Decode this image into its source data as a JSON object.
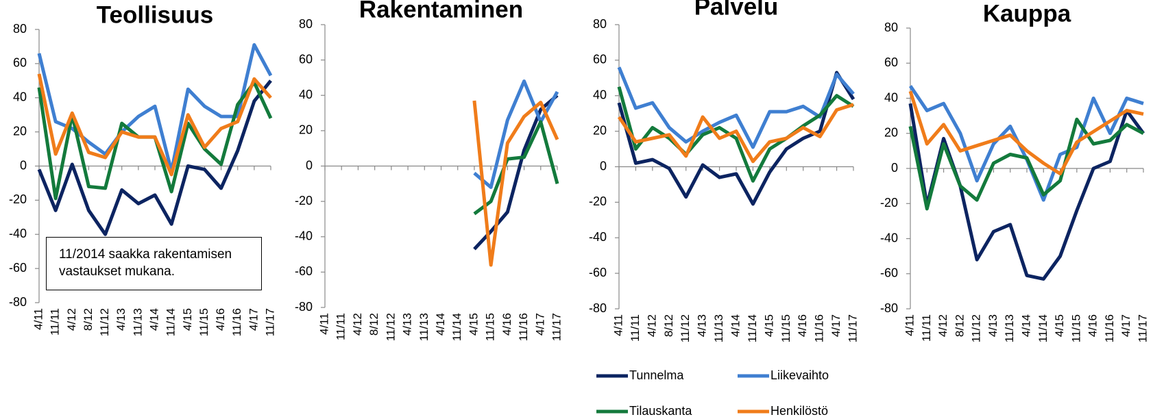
{
  "chart_data": [
    {
      "type": "line",
      "title": "Teollisuus",
      "categories": [
        "4/11",
        "11/11",
        "4/12",
        "8/12",
        "11/12",
        "4/13",
        "11/13",
        "4/14",
        "11/14",
        "4/15",
        "11/15",
        "4/16",
        "11/16",
        "4/17",
        "11/17"
      ],
      "ylim": [
        -80,
        80
      ],
      "yticks": [
        -80,
        -60,
        -40,
        -20,
        0,
        20,
        40,
        60,
        80
      ],
      "annotation": "11/2014 saakka rakentamisen vastaukset mukana.",
      "series": [
        {
          "color": "#0c2461",
          "values": [
            -2,
            -26,
            1,
            -26,
            -40,
            -14,
            -22,
            -17,
            -34,
            0,
            -2,
            -13,
            9,
            38,
            50
          ]
        },
        {
          "color": "#3f7fd1",
          "values": [
            66,
            26,
            22,
            14,
            7,
            20,
            29,
            35,
            -3,
            45,
            35,
            29,
            29,
            71,
            53
          ]
        },
        {
          "color": "#137a3c",
          "values": [
            46,
            -19,
            30,
            -12,
            -13,
            25,
            17,
            17,
            -15,
            25,
            10,
            1,
            36,
            49,
            28
          ]
        },
        {
          "color": "#f07c1a",
          "values": [
            54,
            7,
            31,
            8,
            5,
            20,
            17,
            17,
            -5,
            30,
            11,
            22,
            26,
            51,
            40
          ]
        }
      ]
    },
    {
      "type": "line",
      "title": "Rakentaminen",
      "categories": [
        "4/11",
        "11/11",
        "4/12",
        "8/12",
        "11/12",
        "4/13",
        "11/13",
        "4/14",
        "11/14",
        "4/15",
        "11/15",
        "4/16",
        "11/16",
        "4/17",
        "11/17"
      ],
      "ylim": [
        -80,
        80
      ],
      "yticks": [
        -80,
        -60,
        -40,
        -20,
        0,
        20,
        40,
        60,
        80
      ],
      "series": [
        {
          "color": "#0c2461",
          "values": [
            null,
            null,
            null,
            null,
            null,
            null,
            null,
            null,
            null,
            -47,
            -37,
            -26,
            9,
            32,
            40
          ]
        },
        {
          "color": "#3f7fd1",
          "values": [
            null,
            null,
            null,
            null,
            null,
            null,
            null,
            null,
            null,
            -4,
            -12,
            26,
            48,
            25,
            42
          ]
        },
        {
          "color": "#137a3c",
          "values": [
            null,
            null,
            null,
            null,
            null,
            null,
            null,
            null,
            null,
            -27,
            -20,
            4,
            5,
            25,
            -10
          ]
        },
        {
          "color": "#f07c1a",
          "values": [
            null,
            null,
            null,
            null,
            null,
            null,
            null,
            null,
            null,
            37,
            -56,
            13,
            28,
            36,
            15
          ]
        }
      ]
    },
    {
      "type": "line",
      "title": "Palvelu",
      "categories": [
        "4/11",
        "11/11",
        "4/12",
        "8/12",
        "11/12",
        "4/13",
        "11/13",
        "4/14",
        "11/14",
        "4/15",
        "11/15",
        "4/16",
        "11/16",
        "4/17",
        "11/17"
      ],
      "ylim": [
        -80,
        80
      ],
      "yticks": [
        -80,
        -60,
        -40,
        -20,
        0,
        20,
        40,
        60,
        80
      ],
      "legend": "bottom",
      "series": [
        {
          "name": "Tunnelma",
          "color": "#0c2461",
          "values": [
            36,
            2,
            4,
            -1,
            -17,
            1,
            -6,
            -4,
            -21,
            -3,
            10,
            16,
            20,
            53,
            38
          ]
        },
        {
          "name": "Liikevaihto",
          "color": "#3f7fd1",
          "values": [
            56,
            33,
            36,
            22,
            14,
            20,
            25,
            29,
            11,
            31,
            31,
            34,
            28,
            52,
            41
          ]
        },
        {
          "name": "Tilauskanta",
          "color": "#137a3c",
          "values": [
            45,
            10,
            22,
            16,
            7,
            18,
            22,
            16,
            -8,
            10,
            16,
            23,
            29,
            40,
            34
          ]
        },
        {
          "name": "Henkilöstö",
          "color": "#f07c1a",
          "values": [
            28,
            14,
            16,
            18,
            6,
            28,
            16,
            20,
            3,
            14,
            16,
            22,
            17,
            32,
            35
          ]
        }
      ]
    },
    {
      "type": "line",
      "title": "Kauppa",
      "categories": [
        "4/11",
        "11/11",
        "4/12",
        "8/12",
        "11/12",
        "4/13",
        "11/13",
        "4/14",
        "11/14",
        "4/15",
        "11/15",
        "4/16",
        "11/16",
        "4/17",
        "11/17"
      ],
      "ylim": [
        -80,
        80
      ],
      "yticks": [
        -80,
        -60,
        -40,
        -20,
        0,
        20,
        40,
        60,
        80
      ],
      "series": [
        {
          "color": "#0c2461",
          "values": [
            37,
            -21,
            17,
            -10,
            -52,
            -36,
            -32,
            -61,
            -63,
            -50,
            -24,
            0,
            4,
            33,
            20
          ]
        },
        {
          "color": "#3f7fd1",
          "values": [
            47,
            33,
            37,
            20,
            -7,
            14,
            24,
            5,
            -18,
            8,
            12,
            40,
            20,
            40,
            37
          ]
        },
        {
          "color": "#137a3c",
          "values": [
            24,
            -23,
            14,
            -10,
            -18,
            3,
            8,
            6,
            -15,
            -7,
            28,
            14,
            16,
            25,
            20
          ]
        },
        {
          "color": "#f07c1a",
          "values": [
            44,
            14,
            25,
            10,
            13,
            16,
            19,
            10,
            3,
            -3,
            15,
            21,
            27,
            33,
            31
          ]
        }
      ]
    }
  ]
}
